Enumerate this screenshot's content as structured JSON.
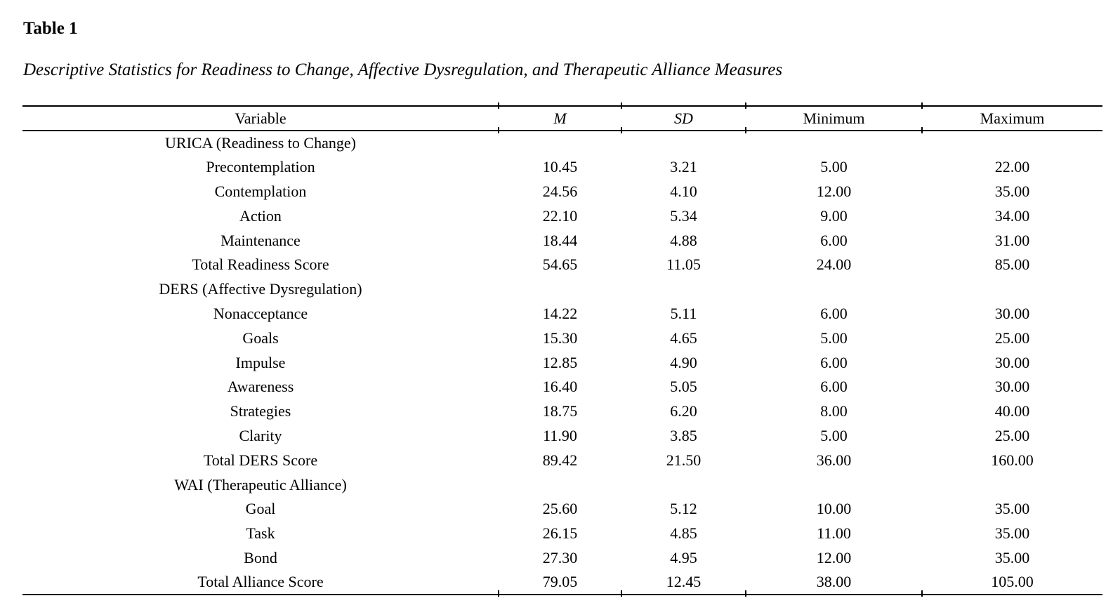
{
  "page": {
    "table_number": "Table 1",
    "caption": "Descriptive Statistics for Readiness to Change, Affective Dysregulation, and Therapeutic Alliance Measures"
  },
  "table": {
    "columns": [
      "Variable",
      "M",
      "SD",
      "Minimum",
      "Maximum"
    ],
    "rows": [
      {
        "type": "section",
        "label": "URICA (Readiness to Change)",
        "m": "",
        "sd": "",
        "min": "",
        "max": ""
      },
      {
        "type": "data",
        "label": "Precontemplation",
        "m": "10.45",
        "sd": "3.21",
        "min": "5.00",
        "max": "22.00"
      },
      {
        "type": "data",
        "label": "Contemplation",
        "m": "24.56",
        "sd": "4.10",
        "min": "12.00",
        "max": "35.00"
      },
      {
        "type": "data",
        "label": "Action",
        "m": "22.10",
        "sd": "5.34",
        "min": "9.00",
        "max": "34.00"
      },
      {
        "type": "data",
        "label": "Maintenance",
        "m": "18.44",
        "sd": "4.88",
        "min": "6.00",
        "max": "31.00"
      },
      {
        "type": "data",
        "label": "Total Readiness Score",
        "m": "54.65",
        "sd": "11.05",
        "min": "24.00",
        "max": "85.00"
      },
      {
        "type": "section",
        "label": "DERS (Affective Dysregulation)",
        "m": "",
        "sd": "",
        "min": "",
        "max": ""
      },
      {
        "type": "data",
        "label": "Nonacceptance",
        "m": "14.22",
        "sd": "5.11",
        "min": "6.00",
        "max": "30.00"
      },
      {
        "type": "data",
        "label": "Goals",
        "m": "15.30",
        "sd": "4.65",
        "min": "5.00",
        "max": "25.00"
      },
      {
        "type": "data",
        "label": "Impulse",
        "m": "12.85",
        "sd": "4.90",
        "min": "6.00",
        "max": "30.00"
      },
      {
        "type": "data",
        "label": "Awareness",
        "m": "16.40",
        "sd": "5.05",
        "min": "6.00",
        "max": "30.00"
      },
      {
        "type": "data",
        "label": "Strategies",
        "m": "18.75",
        "sd": "6.20",
        "min": "8.00",
        "max": "40.00"
      },
      {
        "type": "data",
        "label": "Clarity",
        "m": "11.90",
        "sd": "3.85",
        "min": "5.00",
        "max": "25.00"
      },
      {
        "type": "data",
        "label": "Total DERS Score",
        "m": "89.42",
        "sd": "21.50",
        "min": "36.00",
        "max": "160.00"
      },
      {
        "type": "section",
        "label": "WAI (Therapeutic Alliance)",
        "m": "",
        "sd": "",
        "min": "",
        "max": ""
      },
      {
        "type": "data",
        "label": "Goal",
        "m": "25.60",
        "sd": "5.12",
        "min": "10.00",
        "max": "35.00"
      },
      {
        "type": "data",
        "label": "Task",
        "m": "26.15",
        "sd": "4.85",
        "min": "11.00",
        "max": "35.00"
      },
      {
        "type": "data",
        "label": "Bond",
        "m": "27.30",
        "sd": "4.95",
        "min": "12.00",
        "max": "35.00"
      },
      {
        "type": "data",
        "label": "Total Alliance Score",
        "m": "79.05",
        "sd": "12.45",
        "min": "38.00",
        "max": "105.00"
      }
    ]
  },
  "colors": {
    "text": "#000000",
    "background": "#ffffff",
    "rule": "#000000"
  }
}
